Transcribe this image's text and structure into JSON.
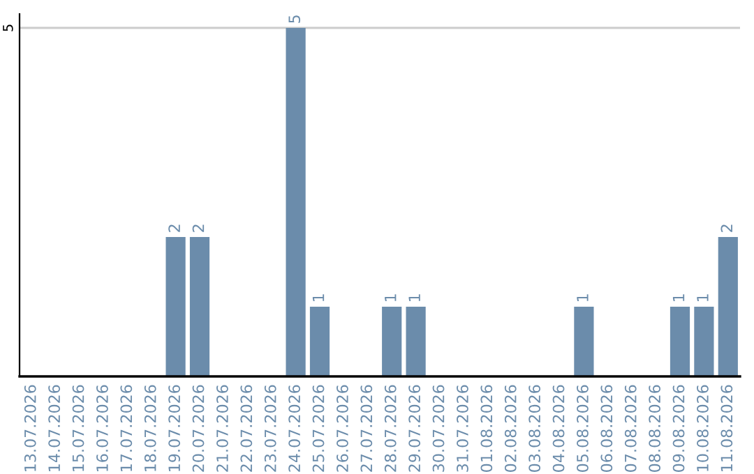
{
  "chart_data": {
    "type": "bar",
    "categories": [
      "13.07.2026",
      "14.07.2026",
      "15.07.2026",
      "16.07.2026",
      "17.07.2026",
      "18.07.2026",
      "19.07.2026",
      "20.07.2026",
      "21.07.2026",
      "22.07.2026",
      "23.07.2026",
      "24.07.2026",
      "25.07.2026",
      "26.07.2026",
      "27.07.2026",
      "28.07.2026",
      "29.07.2026",
      "30.07.2026",
      "31.07.2026",
      "01.08.2026",
      "02.08.2026",
      "03.08.2026",
      "04.08.2026",
      "05.08.2026",
      "06.08.2026",
      "07.08.2026",
      "08.08.2026",
      "09.08.2026",
      "10.08.2026",
      "11.08.2026"
    ],
    "values": [
      0,
      0,
      0,
      0,
      0,
      0,
      2,
      2,
      0,
      0,
      0,
      5,
      1,
      0,
      0,
      1,
      1,
      0,
      0,
      0,
      0,
      0,
      0,
      1,
      0,
      0,
      0,
      1,
      1,
      2
    ],
    "value_labels": [
      null,
      null,
      null,
      null,
      null,
      null,
      "2",
      "2",
      null,
      null,
      null,
      "5",
      "1",
      null,
      null,
      "1",
      "1",
      null,
      null,
      null,
      null,
      null,
      null,
      "1",
      null,
      null,
      null,
      "1",
      "1",
      "2"
    ],
    "color": "#6b8cab",
    "ylim": [
      0,
      5.2
    ],
    "yticks": [
      5
    ],
    "grid": "y"
  }
}
